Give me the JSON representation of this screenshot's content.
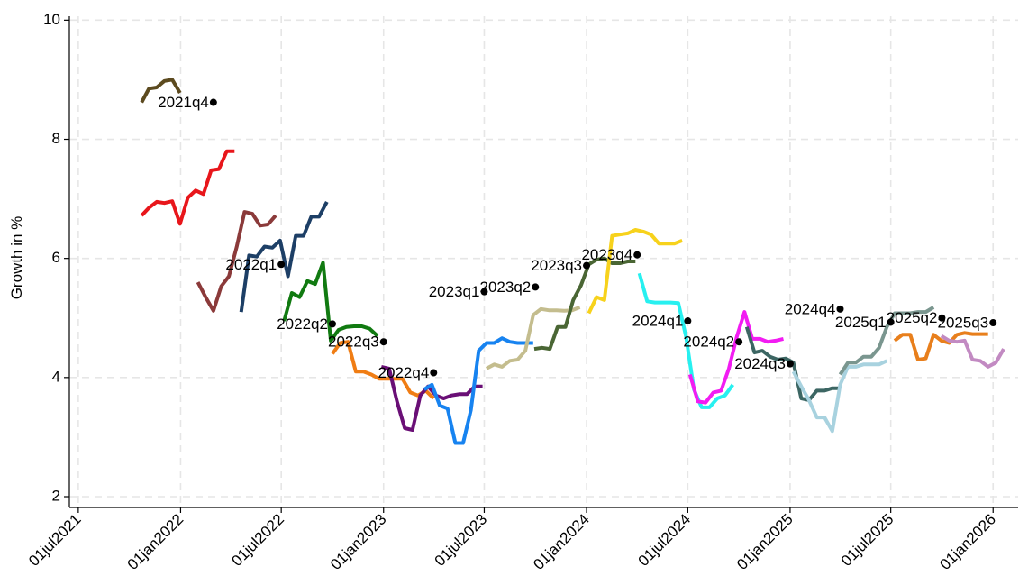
{
  "chart_data": {
    "type": "line",
    "title": "",
    "xlabel": "",
    "ylabel": "Growth in %",
    "ylim": [
      2,
      10
    ],
    "xlim": [
      "2021-06-15",
      "2026-02-15"
    ],
    "yticks": [
      "2",
      "4",
      "6",
      "8",
      "10"
    ],
    "xticks": [
      {
        "date": "2021-07-01",
        "label": "01jul2021"
      },
      {
        "date": "2022-01-01",
        "label": "01jan2022"
      },
      {
        "date": "2022-07-01",
        "label": "01jul2022"
      },
      {
        "date": "2023-01-01",
        "label": "01jan2023"
      },
      {
        "date": "2023-07-01",
        "label": "01jul2023"
      },
      {
        "date": "2024-01-01",
        "label": "01jan2024"
      },
      {
        "date": "2024-07-01",
        "label": "01jul2024"
      },
      {
        "date": "2025-01-01",
        "label": "01jan2025"
      },
      {
        "date": "2025-07-01",
        "label": "01jul2025"
      },
      {
        "date": "2026-01-01",
        "label": "01jan2026"
      }
    ],
    "grid": true,
    "legend": "none",
    "markers": [
      {
        "label": "2021q4",
        "date": "2022-03-01",
        "y": 8.62
      },
      {
        "label": "2022q1",
        "date": "2022-07-01",
        "y": 5.9
      },
      {
        "label": "2022q2",
        "date": "2022-10-01",
        "y": 4.9
      },
      {
        "label": "2022q3",
        "date": "2023-01-01",
        "y": 4.6
      },
      {
        "label": "2022q4",
        "date": "2023-04-01",
        "y": 4.08
      },
      {
        "label": "2023q1",
        "date": "2023-07-01",
        "y": 5.44
      },
      {
        "label": "2023q2",
        "date": "2023-10-01",
        "y": 5.52
      },
      {
        "label": "2023q3",
        "date": "2024-01-01",
        "y": 5.88
      },
      {
        "label": "2023q4",
        "date": "2024-04-01",
        "y": 6.06
      },
      {
        "label": "2024q1",
        "date": "2024-07-01",
        "y": 4.95
      },
      {
        "label": "2024q2",
        "date": "2024-10-01",
        "y": 4.6
      },
      {
        "label": "2024q3",
        "date": "2025-01-01",
        "y": 4.23
      },
      {
        "label": "2024q4",
        "date": "2025-04-01",
        "y": 5.15
      },
      {
        "label": "2025q1",
        "date": "2025-07-01",
        "y": 4.93
      },
      {
        "label": "2025q2",
        "date": "2025-10-01",
        "y": 5.0
      },
      {
        "label": "2025q3",
        "date": "2026-01-01",
        "y": 4.92
      }
    ],
    "series": [
      {
        "color": "#5c4a1f",
        "x": [
          "2021-10-23",
          "2021-11-05",
          "2021-11-19",
          "2021-12-03",
          "2021-12-17",
          "2021-12-31"
        ],
        "y": [
          8.62,
          8.85,
          8.87,
          8.98,
          9.0,
          8.78
        ]
      },
      {
        "color": "#e8161b",
        "x": [
          "2021-10-23",
          "2021-11-05",
          "2021-11-19",
          "2021-12-03",
          "2021-12-17",
          "2021-12-31",
          "2022-01-14",
          "2022-01-28",
          "2022-02-11",
          "2022-02-25",
          "2022-03-11",
          "2022-03-25",
          "2022-04-08"
        ],
        "y": [
          6.72,
          6.85,
          6.95,
          6.93,
          6.96,
          6.58,
          7.02,
          7.14,
          7.08,
          7.48,
          7.5,
          7.8,
          7.8
        ]
      },
      {
        "color": "#8b3a3a",
        "x": [
          "2022-02-01",
          "2022-02-15",
          "2022-03-01",
          "2022-03-15",
          "2022-03-29",
          "2022-04-12",
          "2022-04-26",
          "2022-05-10",
          "2022-05-24",
          "2022-06-07",
          "2022-06-21"
        ],
        "y": [
          5.6,
          5.35,
          5.12,
          5.53,
          5.7,
          6.2,
          6.78,
          6.75,
          6.55,
          6.57,
          6.72
        ]
      },
      {
        "color": "#1d3f66",
        "x": [
          "2022-04-20",
          "2022-05-04",
          "2022-05-18",
          "2022-06-01",
          "2022-06-15",
          "2022-06-29",
          "2022-07-13",
          "2022-07-27",
          "2022-08-10",
          "2022-08-24",
          "2022-09-07",
          "2022-09-21"
        ],
        "y": [
          5.1,
          6.05,
          6.03,
          6.2,
          6.18,
          6.3,
          5.7,
          6.38,
          6.38,
          6.7,
          6.7,
          6.95
        ]
      },
      {
        "color": "#117a11",
        "x": [
          "2022-07-06",
          "2022-07-20",
          "2022-08-03",
          "2022-08-17",
          "2022-08-31",
          "2022-09-14",
          "2022-09-28",
          "2022-10-12",
          "2022-10-26",
          "2022-11-09",
          "2022-11-23",
          "2022-12-07",
          "2022-12-21"
        ],
        "y": [
          4.95,
          5.42,
          5.35,
          5.62,
          5.57,
          5.93,
          4.62,
          4.8,
          4.85,
          4.86,
          4.86,
          4.82,
          4.7
        ]
      },
      {
        "color": "#f07d14",
        "x": [
          "2022-10-01",
          "2022-10-15",
          "2022-10-29",
          "2022-11-12",
          "2022-11-26",
          "2022-12-10",
          "2022-12-24",
          "2023-01-07",
          "2023-01-21",
          "2023-02-04",
          "2023-02-18",
          "2023-03-04",
          "2023-03-18",
          "2023-04-01"
        ],
        "y": [
          4.4,
          4.58,
          4.6,
          4.1,
          4.1,
          4.05,
          3.98,
          3.98,
          3.98,
          3.98,
          3.75,
          3.7,
          3.78,
          3.65
        ]
      },
      {
        "color": "#6a0f76",
        "x": [
          "2022-12-28",
          "2023-01-11",
          "2023-01-25",
          "2023-02-08",
          "2023-02-22",
          "2023-03-08",
          "2023-03-22",
          "2023-04-05",
          "2023-04-19",
          "2023-05-03",
          "2023-05-17",
          "2023-05-31",
          "2023-06-14",
          "2023-06-28"
        ],
        "y": [
          4.18,
          4.15,
          3.6,
          3.15,
          3.12,
          3.7,
          3.85,
          3.7,
          3.65,
          3.7,
          3.72,
          3.72,
          3.85,
          3.85
        ]
      },
      {
        "color": "#1783f0",
        "x": [
          "2023-03-15",
          "2023-03-29",
          "2023-04-12",
          "2023-04-26",
          "2023-05-10",
          "2023-05-24",
          "2023-06-07",
          "2023-06-21",
          "2023-07-05",
          "2023-07-19",
          "2023-08-02",
          "2023-08-16",
          "2023-08-30",
          "2023-09-13",
          "2023-09-27"
        ],
        "y": [
          3.8,
          3.88,
          3.53,
          3.48,
          2.9,
          2.9,
          3.45,
          4.45,
          4.58,
          4.58,
          4.66,
          4.6,
          4.58,
          4.58,
          4.58
        ]
      },
      {
        "color": "#c4bd8e",
        "x": [
          "2023-07-05",
          "2023-07-19",
          "2023-08-02",
          "2023-08-16",
          "2023-08-30",
          "2023-09-13",
          "2023-09-27",
          "2023-10-11",
          "2023-10-25",
          "2023-11-08",
          "2023-11-22",
          "2023-12-06",
          "2023-12-20"
        ],
        "y": [
          4.15,
          4.22,
          4.18,
          4.28,
          4.3,
          4.45,
          5.05,
          5.15,
          5.13,
          5.13,
          5.12,
          5.13,
          5.18
        ]
      },
      {
        "color": "#4a6634",
        "x": [
          "2023-09-29",
          "2023-10-13",
          "2023-10-27",
          "2023-11-10",
          "2023-11-24",
          "2023-12-08",
          "2023-12-22",
          "2024-01-05",
          "2024-01-19",
          "2024-02-02",
          "2024-02-16",
          "2024-03-01",
          "2024-03-15",
          "2024-03-29"
        ],
        "y": [
          4.48,
          4.5,
          4.48,
          4.85,
          4.85,
          5.3,
          5.55,
          5.9,
          5.98,
          6.0,
          5.92,
          5.92,
          5.95,
          5.95
        ]
      },
      {
        "color": "#f7d21c",
        "x": [
          "2024-01-05",
          "2024-01-19",
          "2024-02-02",
          "2024-02-16",
          "2024-03-01",
          "2024-03-15",
          "2024-03-29",
          "2024-04-12",
          "2024-04-26",
          "2024-05-10",
          "2024-05-24",
          "2024-06-07",
          "2024-06-21"
        ],
        "y": [
          5.08,
          5.35,
          5.3,
          6.38,
          6.4,
          6.42,
          6.48,
          6.45,
          6.4,
          6.25,
          6.25,
          6.25,
          6.3
        ]
      },
      {
        "color": "#27f0f0",
        "x": [
          "2024-04-05",
          "2024-04-19",
          "2024-05-03",
          "2024-05-17",
          "2024-05-31",
          "2024-06-14",
          "2024-06-28",
          "2024-07-12",
          "2024-07-26",
          "2024-08-09",
          "2024-08-23",
          "2024-09-06",
          "2024-09-20"
        ],
        "y": [
          5.75,
          5.28,
          5.26,
          5.26,
          5.26,
          5.25,
          4.68,
          3.8,
          3.5,
          3.5,
          3.65,
          3.7,
          3.88
        ]
      },
      {
        "color": "#f21cf2",
        "x": [
          "2024-07-05",
          "2024-07-19",
          "2024-08-02",
          "2024-08-16",
          "2024-08-30",
          "2024-09-13",
          "2024-09-27",
          "2024-10-11",
          "2024-10-25",
          "2024-11-08",
          "2024-11-22",
          "2024-12-06",
          "2024-12-20"
        ],
        "y": [
          4.05,
          3.6,
          3.58,
          3.75,
          3.78,
          4.15,
          4.68,
          5.1,
          4.65,
          4.65,
          4.6,
          4.62,
          4.65
        ]
      },
      {
        "color": "#3c6663",
        "x": [
          "2024-10-15",
          "2024-10-29",
          "2024-11-12",
          "2024-11-26",
          "2024-12-10",
          "2024-12-24",
          "2025-01-07",
          "2025-01-21",
          "2025-02-04",
          "2025-02-18",
          "2025-03-04",
          "2025-03-18",
          "2025-04-01"
        ],
        "y": [
          4.85,
          4.42,
          4.45,
          4.35,
          4.3,
          4.32,
          4.25,
          3.65,
          3.62,
          3.78,
          3.78,
          3.82,
          3.82
        ]
      },
      {
        "color": "#a8d2df",
        "x": [
          "2025-01-07",
          "2025-01-21",
          "2025-02-04",
          "2025-02-18",
          "2025-03-04",
          "2025-03-18",
          "2025-04-01",
          "2025-04-15",
          "2025-04-29",
          "2025-05-13",
          "2025-05-27",
          "2025-06-10",
          "2025-06-24"
        ],
        "y": [
          4.1,
          3.85,
          3.62,
          3.33,
          3.33,
          3.1,
          3.88,
          4.18,
          4.18,
          4.22,
          4.22,
          4.22,
          4.28
        ]
      },
      {
        "color": "#7a968f",
        "x": [
          "2025-04-01",
          "2025-04-15",
          "2025-04-29",
          "2025-05-13",
          "2025-05-27",
          "2025-06-10",
          "2025-06-24",
          "2025-07-08",
          "2025-07-22",
          "2025-08-05",
          "2025-08-19",
          "2025-09-02",
          "2025-09-16"
        ],
        "y": [
          4.05,
          4.25,
          4.25,
          4.35,
          4.35,
          4.5,
          4.85,
          5.08,
          5.08,
          5.08,
          5.1,
          5.1,
          5.18
        ]
      },
      {
        "color": "#e87f1c",
        "x": [
          "2025-07-08",
          "2025-07-22",
          "2025-08-05",
          "2025-08-19",
          "2025-09-02",
          "2025-09-16",
          "2025-09-30",
          "2025-10-14",
          "2025-10-28",
          "2025-11-11",
          "2025-11-25",
          "2025-12-09",
          "2025-12-23"
        ],
        "y": [
          4.62,
          4.72,
          4.72,
          4.3,
          4.32,
          4.72,
          4.62,
          4.58,
          4.72,
          4.75,
          4.73,
          4.73,
          4.73
        ]
      },
      {
        "color": "#c28ac2",
        "x": [
          "2025-09-30",
          "2025-10-14",
          "2025-10-28",
          "2025-11-11",
          "2025-11-25",
          "2025-12-09",
          "2025-12-23",
          "2026-01-06",
          "2026-01-20"
        ],
        "y": [
          4.7,
          4.62,
          4.6,
          4.62,
          4.3,
          4.28,
          4.18,
          4.25,
          4.48
        ]
      }
    ]
  }
}
